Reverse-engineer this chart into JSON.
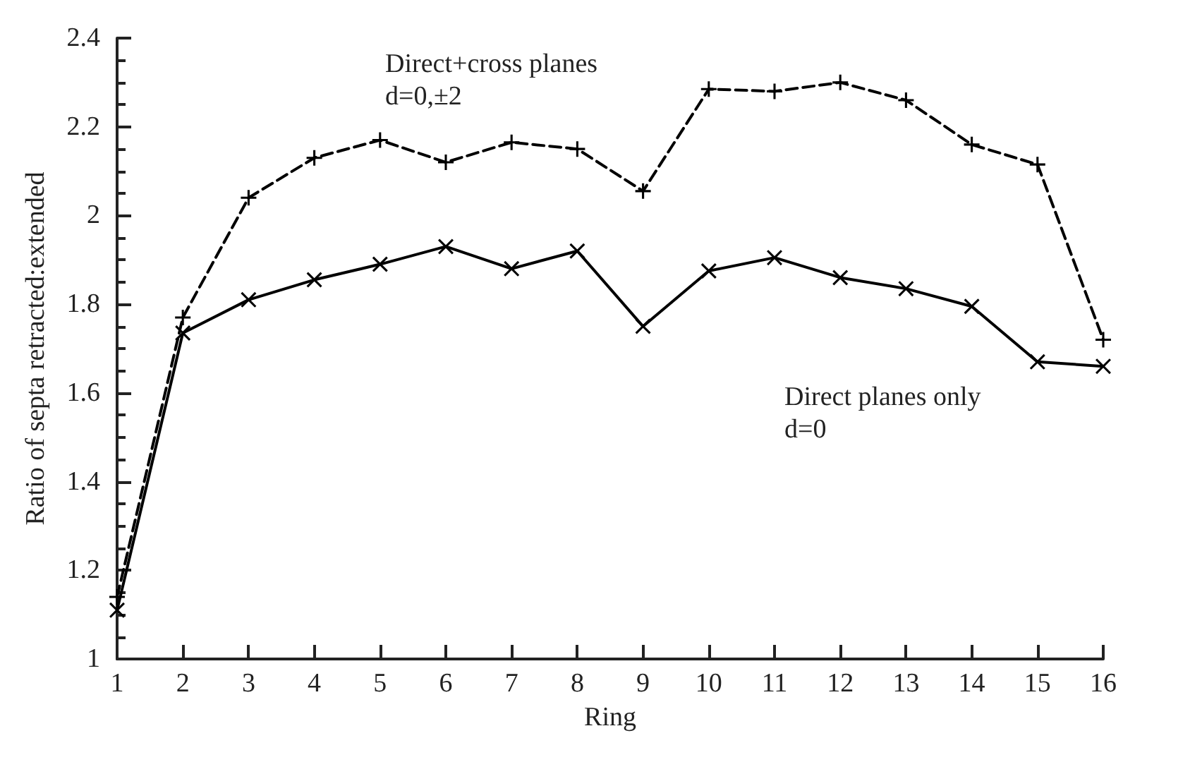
{
  "chart_data": {
    "type": "line",
    "xlabel": "Ring",
    "ylabel": "Ratio of septa retracted:extended",
    "x": [
      1,
      2,
      3,
      4,
      5,
      6,
      7,
      8,
      9,
      10,
      11,
      12,
      13,
      14,
      15,
      16
    ],
    "series": [
      {
        "name": "Direct+cross planes\nd=0,±2",
        "color": "#000000",
        "line_style": "dashed",
        "marker": "plus",
        "values": [
          1.14,
          1.77,
          2.04,
          2.13,
          2.17,
          2.12,
          2.165,
          2.15,
          2.055,
          2.285,
          2.28,
          2.3,
          2.26,
          2.16,
          2.115,
          1.72
        ]
      },
      {
        "name": "Direct planes only\nd=0",
        "color": "#000000",
        "line_style": "solid",
        "marker": "cross",
        "values": [
          1.11,
          1.735,
          1.81,
          1.855,
          1.89,
          1.93,
          1.88,
          1.92,
          1.75,
          1.875,
          1.905,
          1.86,
          1.835,
          1.795,
          1.67,
          1.66
        ]
      }
    ],
    "xlim": [
      1,
      16
    ],
    "xticks": [
      1,
      2,
      3,
      4,
      5,
      6,
      7,
      8,
      9,
      10,
      11,
      12,
      13,
      14,
      15,
      16
    ],
    "ylim": [
      1,
      2.4
    ],
    "yticks": [
      1,
      1.2,
      1.4,
      1.6,
      1.8,
      2,
      2.2,
      2.4
    ],
    "grid": false,
    "legend": false
  }
}
